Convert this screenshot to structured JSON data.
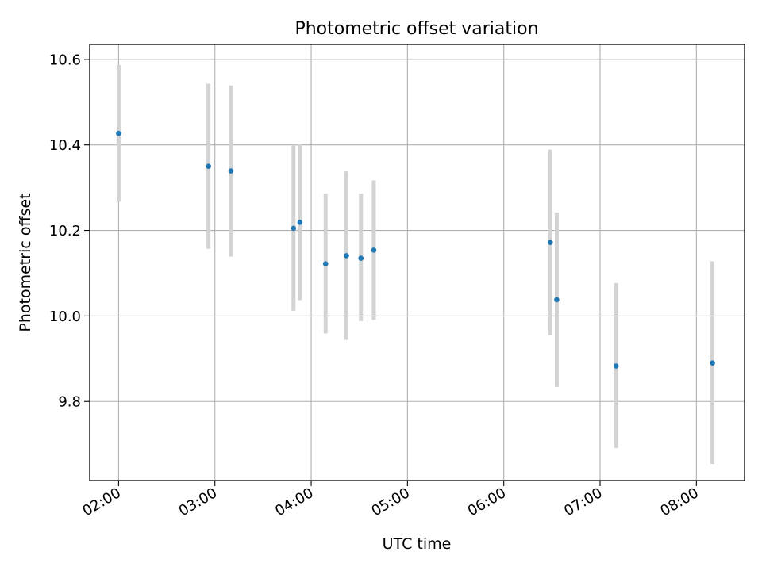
{
  "chart_data": {
    "type": "scatter",
    "title": "Photometric offset variation",
    "xlabel": "UTC time",
    "ylabel": "Photometric offset",
    "xlim": [
      "01:42",
      "08:30"
    ],
    "ylim": [
      9.615,
      10.635
    ],
    "grid": true,
    "x_tick_labels": [
      "02:00",
      "03:00",
      "04:00",
      "05:00",
      "06:00",
      "07:00",
      "08:00"
    ],
    "y_tick_labels": [
      "9.8",
      "10.0",
      "10.2",
      "10.4",
      "10.6"
    ],
    "y_ticks": [
      9.8,
      10.0,
      10.2,
      10.4,
      10.6
    ],
    "marker_color": "#1f77b4",
    "errorbar_color": "#d3d3d3",
    "points": [
      {
        "x": "02:00",
        "y": 10.427,
        "ylo": 10.267,
        "yhi": 10.587
      },
      {
        "x": "02:56",
        "y": 10.35,
        "ylo": 10.157,
        "yhi": 10.543
      },
      {
        "x": "03:10",
        "y": 10.339,
        "ylo": 10.139,
        "yhi": 10.539
      },
      {
        "x": "03:49",
        "y": 10.205,
        "ylo": 10.012,
        "yhi": 10.4
      },
      {
        "x": "03:53",
        "y": 10.219,
        "ylo": 10.037,
        "yhi": 10.401
      },
      {
        "x": "04:09",
        "y": 10.122,
        "ylo": 9.959,
        "yhi": 10.286
      },
      {
        "x": "04:22",
        "y": 10.141,
        "ylo": 9.944,
        "yhi": 10.338
      },
      {
        "x": "04:31",
        "y": 10.135,
        "ylo": 9.988,
        "yhi": 10.286
      },
      {
        "x": "04:39",
        "y": 10.154,
        "ylo": 9.991,
        "yhi": 10.317
      },
      {
        "x": "06:29",
        "y": 10.172,
        "ylo": 9.955,
        "yhi": 10.389
      },
      {
        "x": "06:33",
        "y": 10.038,
        "ylo": 9.834,
        "yhi": 10.242
      },
      {
        "x": "07:10",
        "y": 9.883,
        "ylo": 9.691,
        "yhi": 10.077
      },
      {
        "x": "08:10",
        "y": 9.89,
        "ylo": 9.654,
        "yhi": 10.128
      }
    ]
  }
}
